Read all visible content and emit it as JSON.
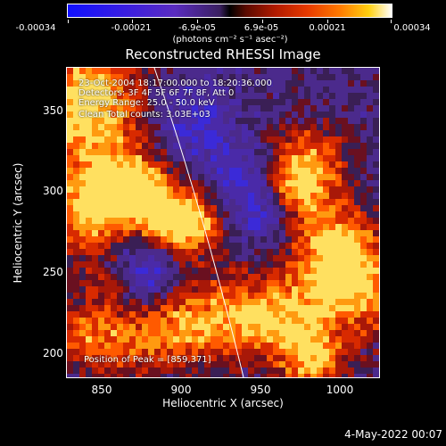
{
  "colorbar": {
    "ticks": [
      "-0.00034",
      "-0.00021",
      "-6.9e-05",
      "6.9e-05",
      "0.00021",
      "0.00034"
    ],
    "units": "(photons cm⁻² s⁻¹ asec⁻²)"
  },
  "title": "Reconstructed RHESSI Image",
  "annotations": {
    "line1": "23-Oct-2004 18:17:00.000 to 18:20:36.000",
    "line2": "Detectors: 3F 4F 5F 6F 7F 8F, Att 0",
    "line3": "Energy Range: 25.0 - 50.0 keV",
    "line4": "Clean   Total counts: 3.03E+03",
    "peak": "Position of Peak = [859,371]"
  },
  "axes": {
    "xlabel": "Heliocentric X (arcsec)",
    "ylabel": "Heliocentric Y (arcsec)",
    "xticks": [
      "850",
      "900",
      "950",
      "1000"
    ],
    "yticks": [
      "350",
      "300",
      "250",
      "200"
    ]
  },
  "timestamp": "4-May-2022 00:07"
}
